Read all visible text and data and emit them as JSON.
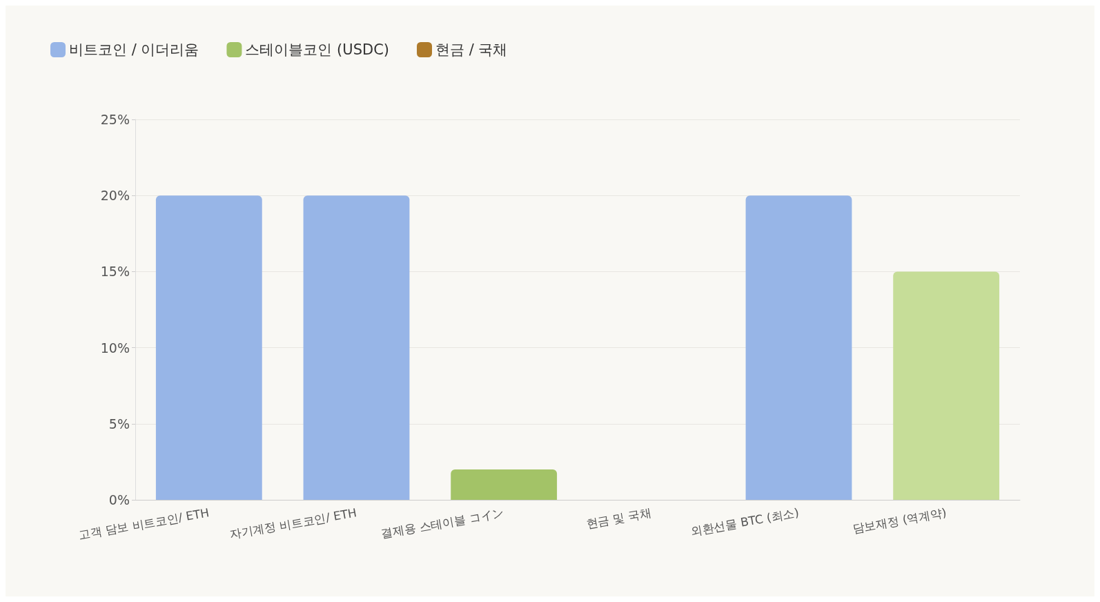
{
  "chart_data": {
    "type": "bar",
    "stacked": true,
    "categories": [
      "고객 담보 비트코인/ ETH",
      "자기계정 비트코인/ ETH",
      "결제용 스테이블 コイン",
      "현금 및 국채",
      "외환선물 BTC (최소)",
      "담보재정 (역계약)"
    ],
    "series": [
      {
        "name": "비트코인 / 이더리움",
        "color": "#97b5e7",
        "values": [
          20,
          20,
          null,
          null,
          20,
          null
        ]
      },
      {
        "name": "스테이블코인 (USDC)",
        "color": "#a3c367",
        "colors": [
          "#a3c367",
          "#a3c367",
          "#a3c367",
          "#a3c367",
          "#a3c367",
          "#c6dd98"
        ],
        "values": [
          null,
          null,
          2,
          null,
          null,
          15
        ]
      },
      {
        "name": "현금 / 국채",
        "color": "#ae7a2a",
        "values": [
          null,
          null,
          null,
          0,
          null,
          null
        ]
      }
    ],
    "ylim": [
      0,
      25
    ],
    "yticks": [
      {
        "value": 0,
        "label": "0%"
      },
      {
        "value": 5,
        "label": "5%"
      },
      {
        "value": 10,
        "label": "10%"
      },
      {
        "value": 15,
        "label": "15%"
      },
      {
        "value": 20,
        "label": "20%"
      },
      {
        "value": 25,
        "label": "25%"
      }
    ],
    "grid": "y",
    "legend": "top left"
  }
}
